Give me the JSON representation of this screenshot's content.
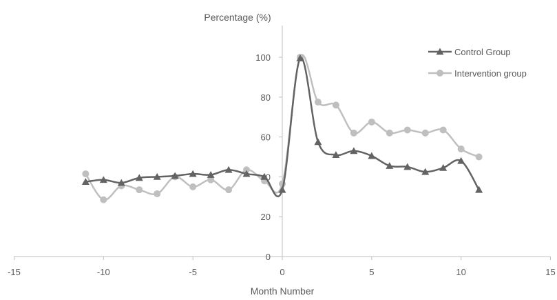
{
  "chart_data": {
    "type": "line",
    "title": "",
    "xlabel": "Month Number",
    "ylabel": "Percentage (%)",
    "xlim": [
      -15,
      15
    ],
    "ylim": [
      0,
      100
    ],
    "x_ticks": [
      -15,
      -10,
      -5,
      0,
      5,
      10,
      15
    ],
    "y_ticks": [
      0,
      20,
      40,
      60,
      80,
      100
    ],
    "x_tick_labels": [
      "-15",
      "-10",
      "-5",
      "0",
      "5",
      "10",
      "15"
    ],
    "y_tick_labels": [
      "0",
      "20",
      "40",
      "60",
      "80",
      "100"
    ],
    "grid": false,
    "legend_position": "top-right",
    "series": [
      {
        "name": "Control Group",
        "color": "#636363",
        "marker": "triangle",
        "x": [
          -11,
          -10,
          -9,
          -8,
          -7,
          -6,
          -5,
          -4,
          -3,
          -2,
          -1,
          0,
          1,
          2,
          3,
          4,
          5,
          6,
          7,
          8,
          9,
          10,
          11
        ],
        "values": [
          37.5,
          38.5,
          37,
          39.5,
          40,
          40.5,
          41.5,
          41,
          43.5,
          41.5,
          40,
          33.5,
          99.5,
          57.5,
          51,
          53,
          50.5,
          45.5,
          45,
          42.5,
          44.5,
          48,
          33.5
        ]
      },
      {
        "name": "Intervention group",
        "color": "#bfbfbf",
        "marker": "circle",
        "x": [
          -11,
          -10,
          -9,
          -8,
          -7,
          -6,
          -5,
          -4,
          -3,
          -2,
          -1,
          0,
          1,
          2,
          3,
          4,
          5,
          6,
          7,
          8,
          9,
          10,
          11
        ],
        "values": [
          41.5,
          28.5,
          35.5,
          33.5,
          31.5,
          40,
          35,
          38.5,
          33.5,
          43.5,
          38,
          36.5,
          100,
          77.5,
          76,
          62,
          67.5,
          62,
          63.5,
          62,
          63.5,
          54,
          50
        ]
      }
    ]
  }
}
